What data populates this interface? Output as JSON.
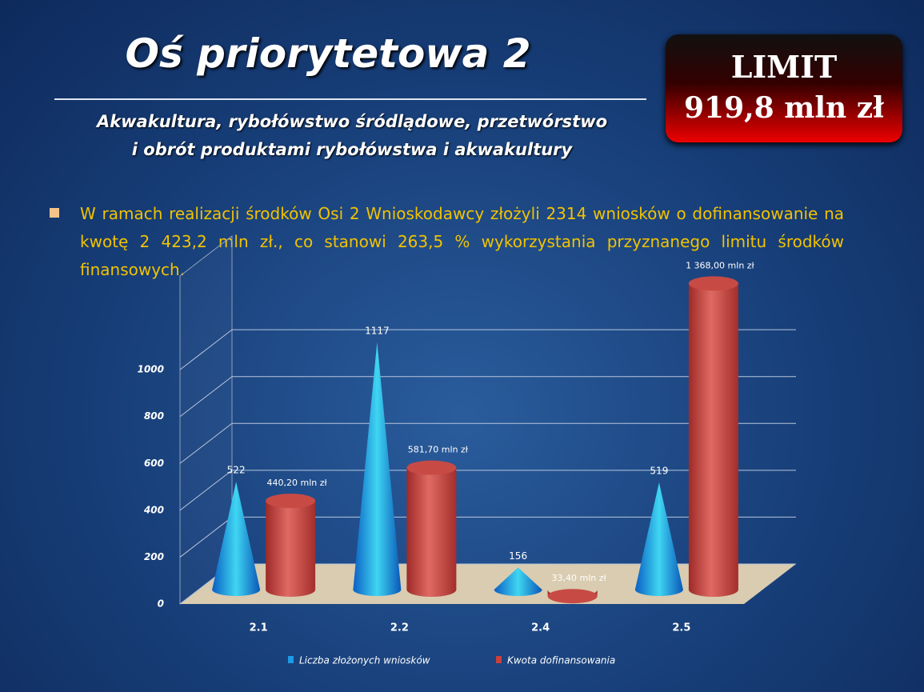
{
  "title": "Oś priorytetowa 2",
  "subtitle": [
    "Akwakultura, rybołówstwo śródlądowe, przetwórstwo",
    "i obrót produktami rybołówstwa i akwakultury"
  ],
  "limit": {
    "label": "LIMIT",
    "amount": "919,8 mln zł"
  },
  "bullet": "W ramach realizacji środków Osi 2 Wnioskodawcy złożyli 2314 wniosków o dofinansowanie na kwotę 2 423,2 mln zł., co stanowi 263,5 % wykorzystania przyznanego limitu środków finansowych.",
  "chart_data": {
    "type": "bar3d",
    "categories": [
      "2.1",
      "2.2",
      "2.4",
      "2.5"
    ],
    "series": [
      {
        "name": "Liczba złożonych wniosków",
        "color": "#1e9be8",
        "values": [
          522,
          1117,
          156,
          519
        ]
      },
      {
        "name": "Kwota dofinansowania",
        "color": "#c9403c",
        "values": [
          440.2,
          581.7,
          33.4,
          1368
        ],
        "value_labels": [
          "440,20 mln zł",
          "581,70 mln zł",
          "33,40 mln zł",
          "1 368,00 mln zł"
        ]
      }
    ],
    "ylim": [
      0,
      1400
    ],
    "yticks": [
      0,
      200,
      400,
      600,
      800,
      1000
    ],
    "grid": true,
    "legend": "bottom"
  }
}
